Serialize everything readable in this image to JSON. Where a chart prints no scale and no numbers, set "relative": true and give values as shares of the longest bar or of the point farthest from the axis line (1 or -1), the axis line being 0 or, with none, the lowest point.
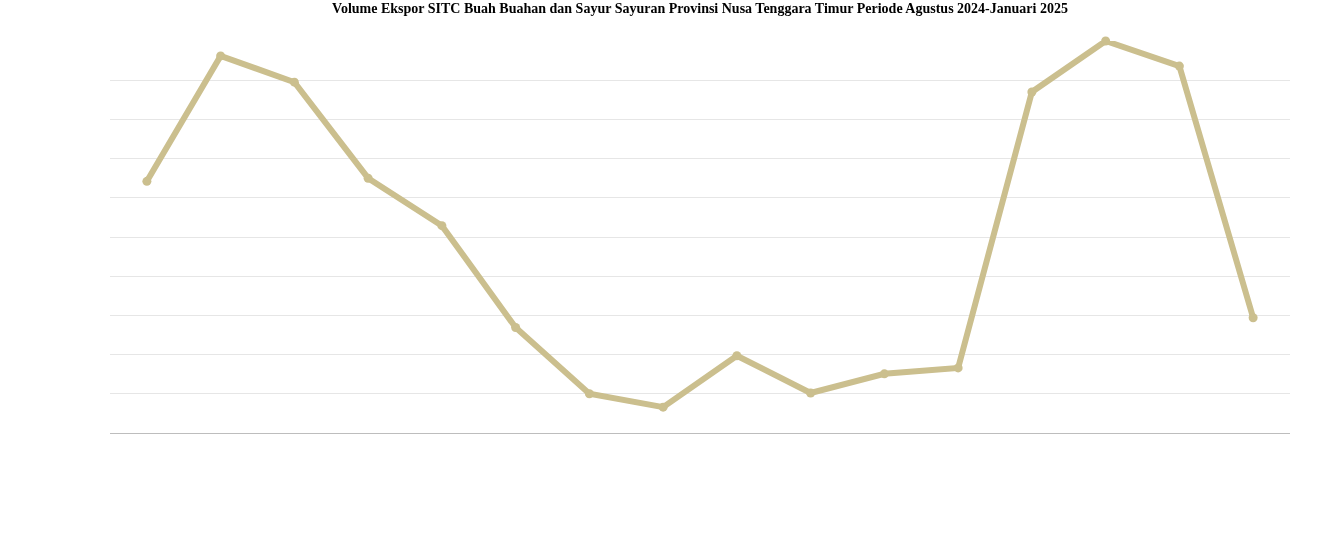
{
  "chart_data": {
    "type": "line",
    "title": "Volume Ekspor SITC Buah Buahan dan Sayur Sayuran Provinsi Nusa Tenggara Timur Periode Agustus 2024-Januari 2025",
    "categories": [
      null,
      null,
      null,
      null,
      null,
      null,
      null,
      null,
      null,
      null,
      null,
      null,
      null,
      null,
      null,
      null
    ],
    "relative": true,
    "series": [
      {
        "color": "#cbbf8e",
        "values": [
          0.642,
          0.962,
          0.895,
          0.65,
          0.529,
          0.269,
          0.1,
          0.066,
          0.197,
          0.102,
          0.151,
          0.166,
          0.87,
          1.0,
          0.936,
          0.294
        ]
      }
    ],
    "marker": "circle",
    "line_style": "solid",
    "grid": "y"
  }
}
